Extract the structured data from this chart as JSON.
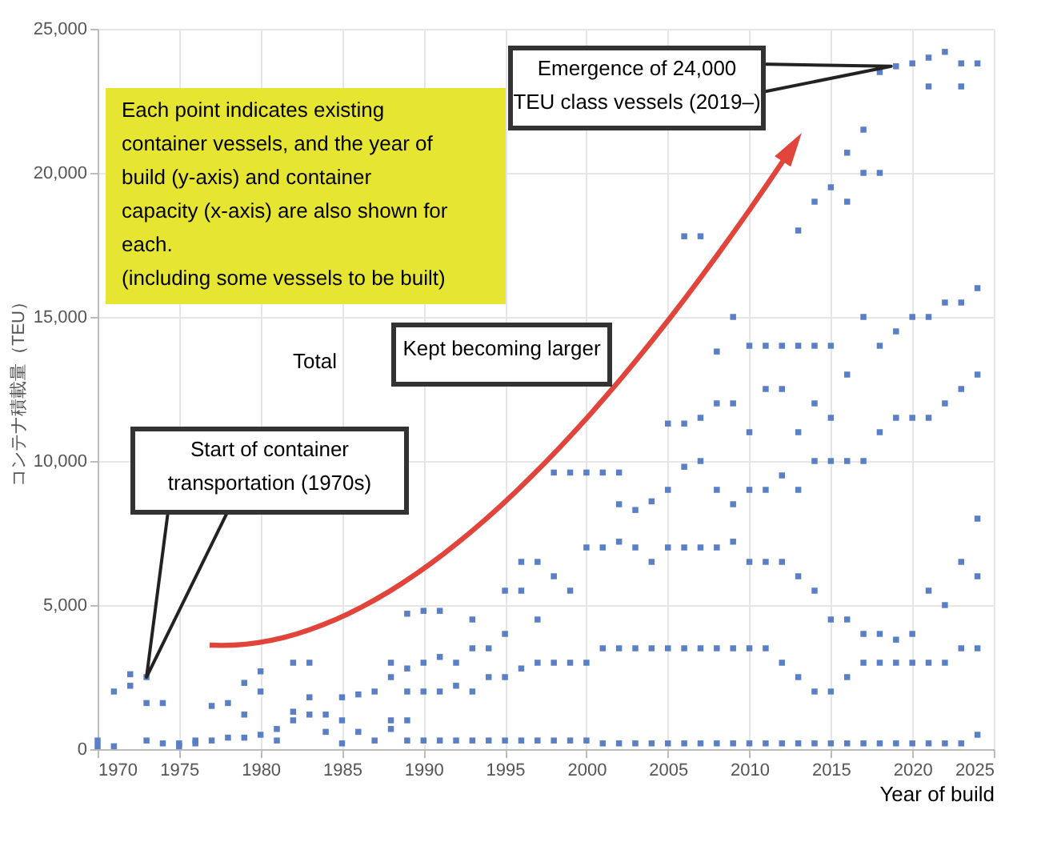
{
  "chart_data": {
    "type": "scatter",
    "ylabel": "コンテナ積載量（TEU）",
    "xlabel": "Year of build",
    "xlim": [
      1970,
      2025
    ],
    "xticks": [
      1970,
      1975,
      1980,
      1985,
      1990,
      1995,
      2000,
      2005,
      2010,
      2015,
      2020,
      2025
    ],
    "ylim": [
      0,
      25000
    ],
    "yticks": [
      0,
      {
        "value": 5000,
        "label": "5,000"
      },
      {
        "value": 10000,
        "label": "10,000"
      },
      {
        "value": 15000,
        "label": "15,000"
      },
      {
        "value": 20000,
        "label": "20,000"
      },
      {
        "value": 25000,
        "label": "25,000"
      }
    ],
    "grid": true,
    "marker": "square",
    "color": "#5b7fc4",
    "x": [
      1970,
      1970,
      1971,
      1971,
      1972,
      1972,
      1973,
      1973,
      1973,
      1974,
      1974,
      1975,
      1975,
      1976,
      1976,
      1977,
      1977,
      1978,
      1978,
      1979,
      1979,
      1979,
      1980,
      1980,
      1980,
      1981,
      1981,
      1982,
      1982,
      1982,
      1983,
      1983,
      1983,
      1984,
      1984,
      1985,
      1985,
      1985,
      1986,
      1986,
      1987,
      1987,
      1988,
      1988,
      1988,
      1988,
      1989,
      1989,
      1989,
      1989,
      1989,
      1990,
      1990,
      1990,
      1990,
      1991,
      1991,
      1991,
      1991,
      1992,
      1992,
      1992,
      1993,
      1993,
      1993,
      1993,
      1994,
      1994,
      1994,
      1995,
      1995,
      1995,
      1995,
      1996,
      1996,
      1996,
      1996,
      1997,
      1997,
      1997,
      1997,
      1998,
      1998,
      1998,
      1998,
      1999,
      1999,
      1999,
      1999,
      2000,
      2000,
      2000,
      2000,
      2001,
      2001,
      2001,
      2001,
      2002,
      2002,
      2002,
      2002,
      2002,
      2003,
      2003,
      2003,
      2003,
      2004,
      2004,
      2004,
      2004,
      2005,
      2005,
      2005,
      2005,
      2005,
      2006,
      2006,
      2006,
      2006,
      2006,
      2006,
      2007,
      2007,
      2007,
      2007,
      2007,
      2007,
      2008,
      2008,
      2008,
      2008,
      2008,
      2008,
      2009,
      2009,
      2009,
      2009,
      2009,
      2009,
      2010,
      2010,
      2010,
      2010,
      2010,
      2010,
      2011,
      2011,
      2011,
      2011,
      2011,
      2011,
      2012,
      2012,
      2012,
      2012,
      2012,
      2012,
      2013,
      2013,
      2013,
      2013,
      2013,
      2013,
      2013,
      2014,
      2014,
      2014,
      2014,
      2014,
      2014,
      2014,
      2015,
      2015,
      2015,
      2015,
      2015,
      2015,
      2015,
      2016,
      2016,
      2016,
      2016,
      2016,
      2016,
      2016,
      2017,
      2017,
      2017,
      2017,
      2017,
      2017,
      2017,
      2018,
      2018,
      2018,
      2018,
      2018,
      2018,
      2018,
      2019,
      2019,
      2019,
      2019,
      2019,
      2019,
      2020,
      2020,
      2020,
      2020,
      2020,
      2020,
      2021,
      2021,
      2021,
      2021,
      2021,
      2021,
      2021,
      2022,
      2022,
      2022,
      2022,
      2022,
      2022,
      2023,
      2023,
      2023,
      2023,
      2023,
      2023,
      2023,
      2024,
      2024,
      2024,
      2024,
      2024,
      2024,
      2024
    ],
    "values": [
      300,
      100,
      100,
      2000,
      2200,
      2600,
      300,
      1600,
      2500,
      200,
      1600,
      100,
      200,
      200,
      300,
      300,
      1500,
      400,
      1600,
      400,
      1200,
      2300,
      500,
      2000,
      2700,
      700,
      300,
      1000,
      1300,
      3000,
      1200,
      1800,
      3000,
      1200,
      600,
      200,
      1000,
      1800,
      600,
      1900,
      300,
      2000,
      700,
      1000,
      2500,
      3000,
      300,
      1000,
      2000,
      2800,
      4700,
      300,
      2000,
      3000,
      4800,
      300,
      2000,
      3200,
      4800,
      300,
      2200,
      3000,
      300,
      2000,
      3500,
      4500,
      300,
      2500,
      3500,
      300,
      2500,
      4000,
      5500,
      300,
      2800,
      5500,
      6500,
      300,
      3000,
      4500,
      6500,
      300,
      3000,
      6000,
      9600,
      300,
      3000,
      5500,
      9600,
      300,
      3000,
      7000,
      9600,
      200,
      3500,
      7000,
      9600,
      200,
      3500,
      7200,
      8500,
      9600,
      200,
      3500,
      7000,
      8300,
      200,
      3500,
      6500,
      8600,
      200,
      3500,
      7000,
      9000,
      11300,
      200,
      3500,
      7000,
      9800,
      11300,
      17800,
      200,
      3500,
      7000,
      10000,
      11500,
      17800,
      200,
      3500,
      7000,
      9000,
      12000,
      13800,
      200,
      3500,
      7200,
      8500,
      12000,
      15000,
      200,
      3500,
      6500,
      9000,
      11000,
      14000,
      200,
      3500,
      6500,
      9000,
      12500,
      14000,
      200,
      3000,
      6500,
      9500,
      12500,
      14000,
      200,
      2500,
      6000,
      9000,
      11000,
      14000,
      18000,
      200,
      2000,
      5500,
      10000,
      12000,
      14000,
      19000,
      200,
      2000,
      4500,
      10000,
      11500,
      14000,
      19500,
      200,
      2500,
      4500,
      10000,
      13000,
      19000,
      20700,
      200,
      3000,
      4000,
      10000,
      15000,
      20000,
      21500,
      200,
      3000,
      4000,
      11000,
      14000,
      20000,
      23500,
      200,
      3000,
      3800,
      11500,
      14500,
      23700,
      200,
      3000,
      4000,
      11500,
      15000,
      23800,
      200,
      3000,
      5500,
      11500,
      15000,
      23000,
      24000,
      200,
      3000,
      5000,
      12000,
      15500,
      24200,
      200,
      3500,
      6500,
      12500,
      15500,
      23000,
      23800,
      500,
      3500,
      6000,
      8000,
      13000,
      16000,
      23800
    ],
    "annotations": [
      "Each point indicates existing\ncontainer vessels, and the year of\nbuild (y-axis) and container\ncapacity (x-axis) are also shown for\neach.\n(including some vessels to be built)",
      "Total",
      "Kept becoming larger",
      {
        "text": "Start of container\ntransportation (1970s)",
        "x": 1973,
        "y": 2500
      },
      {
        "text": "Emergence of 24,000\nTEU class vessels (2019–)",
        "x": 2019,
        "y": 23700
      }
    ]
  }
}
